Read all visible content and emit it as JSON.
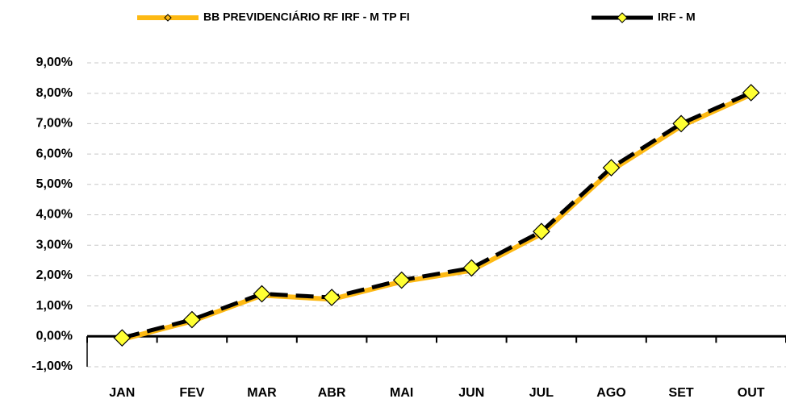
{
  "chart_data": {
    "type": "line",
    "categories": [
      "JAN",
      "FEV",
      "MAR",
      "ABR",
      "MAI",
      "JUN",
      "JUL",
      "AGO",
      "SET",
      "OUT"
    ],
    "series": [
      {
        "name": "BB PREVIDENCIÁRIO RF IRF - M TP FI",
        "color": "#FDB913",
        "values": [
          -0.1,
          0.5,
          1.35,
          1.22,
          1.8,
          2.17,
          3.37,
          5.46,
          6.92,
          7.96
        ]
      },
      {
        "name": "IRF - M",
        "color": "#000000",
        "marker_color": "#FFFF33",
        "values": [
          -0.05,
          0.55,
          1.4,
          1.28,
          1.85,
          2.25,
          3.45,
          5.55,
          7.0,
          8.02
        ]
      }
    ],
    "ylim": [
      -1,
      9
    ],
    "yticks": [
      {
        "value": -1,
        "label": "-1,00%"
      },
      {
        "value": 0,
        "label": "0,00%"
      },
      {
        "value": 1,
        "label": "1,00%"
      },
      {
        "value": 2,
        "label": "2,00%"
      },
      {
        "value": 3,
        "label": "3,00%"
      },
      {
        "value": 4,
        "label": "4,00%"
      },
      {
        "value": 5,
        "label": "5,00%"
      },
      {
        "value": 6,
        "label": "6,00%"
      },
      {
        "value": 7,
        "label": "7,00%"
      },
      {
        "value": 8,
        "label": "8,00%"
      },
      {
        "value": 9,
        "label": "9,00%"
      }
    ],
    "grid": true,
    "legend": "top"
  }
}
